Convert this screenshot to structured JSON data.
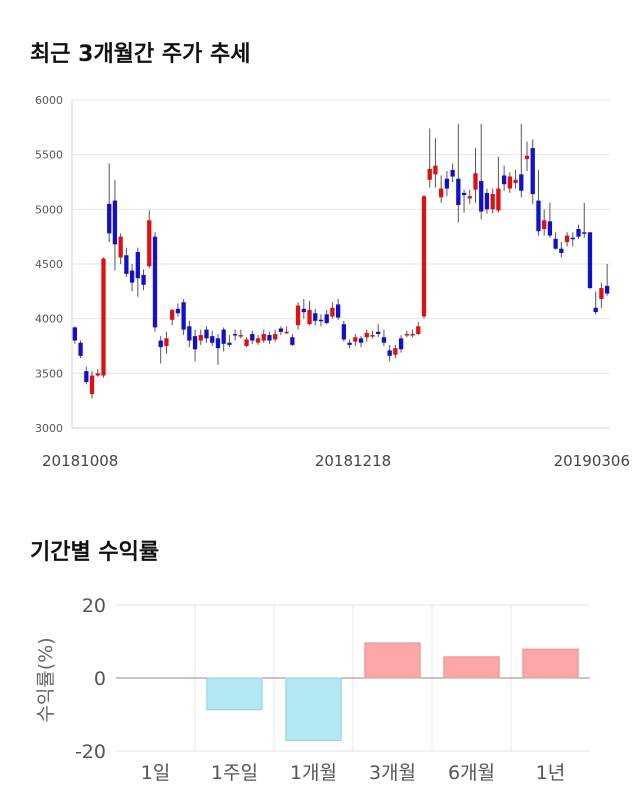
{
  "chart_data": [
    {
      "type": "candlestick",
      "title": "최근 3개월간 주가 추세",
      "ylim": [
        3000,
        6000
      ],
      "y_ticks": [
        "3000",
        "3500",
        "4000",
        "4500",
        "5000",
        "5500",
        "6000"
      ],
      "x_labels": [
        "20181008",
        "20181218",
        "20190306"
      ],
      "colors": {
        "up": "#dd1111",
        "down": "#1111cc",
        "wick": "#555555"
      },
      "candles": [
        [
          3920,
          3800,
          3930,
          3770
        ],
        [
          3780,
          3660,
          3800,
          3640
        ],
        [
          3520,
          3420,
          3560,
          3400
        ],
        [
          3310,
          3480,
          3520,
          3270
        ],
        [
          3480,
          3500,
          3540,
          3470
        ],
        [
          3480,
          4550,
          4560,
          3460
        ],
        [
          5050,
          4780,
          5420,
          4700
        ],
        [
          5080,
          4680,
          5270,
          4440
        ],
        [
          4560,
          4750,
          4780,
          4500
        ],
        [
          4580,
          4410,
          4650,
          4380
        ],
        [
          4440,
          4330,
          4500,
          4250
        ],
        [
          4610,
          4370,
          4650,
          4200
        ],
        [
          4400,
          4310,
          4450,
          4260
        ],
        [
          4480,
          4900,
          4990,
          4460
        ],
        [
          4750,
          3920,
          4790,
          3880
        ],
        [
          3800,
          3740,
          3840,
          3590
        ],
        [
          3750,
          3820,
          3880,
          3680
        ],
        [
          3990,
          4080,
          4090,
          3940
        ],
        [
          4090,
          4050,
          4140,
          4020
        ],
        [
          4150,
          3900,
          4180,
          3850
        ],
        [
          3930,
          3800,
          3980,
          3740
        ],
        [
          3840,
          3720,
          3900,
          3610
        ],
        [
          3800,
          3850,
          3900,
          3760
        ],
        [
          3900,
          3820,
          3930,
          3780
        ],
        [
          3840,
          3780,
          3890,
          3750
        ],
        [
          3820,
          3730,
          3860,
          3580
        ],
        [
          3900,
          3770,
          3920,
          3700
        ],
        [
          3780,
          3760,
          3850,
          3740
        ],
        [
          3860,
          3850,
          3900,
          3800
        ],
        [
          3850,
          3850,
          3900,
          3820
        ],
        [
          3750,
          3810,
          3830,
          3740
        ],
        [
          3860,
          3800,
          3890,
          3770
        ],
        [
          3780,
          3820,
          3850,
          3760
        ],
        [
          3800,
          3860,
          3900,
          3780
        ],
        [
          3850,
          3800,
          3880,
          3770
        ],
        [
          3810,
          3860,
          3900,
          3790
        ],
        [
          3910,
          3880,
          3930,
          3850
        ],
        [
          3880,
          3880,
          3930,
          3860
        ],
        [
          3830,
          3760,
          3860,
          3750
        ],
        [
          3940,
          4120,
          4150,
          3900
        ],
        [
          4090,
          4060,
          4180,
          4000
        ],
        [
          3950,
          4080,
          4160,
          3940
        ],
        [
          4050,
          3980,
          4090,
          3940
        ],
        [
          3990,
          3980,
          4040,
          3930
        ],
        [
          4040,
          3960,
          4080,
          3950
        ],
        [
          4020,
          4100,
          4150,
          4000
        ],
        [
          4130,
          4010,
          4180,
          3990
        ],
        [
          3950,
          3810,
          3980,
          3790
        ],
        [
          3780,
          3760,
          3810,
          3730
        ],
        [
          3790,
          3830,
          3860,
          3750
        ],
        [
          3820,
          3780,
          3840,
          3740
        ],
        [
          3830,
          3870,
          3900,
          3790
        ],
        [
          3850,
          3850,
          3890,
          3820
        ],
        [
          3880,
          3860,
          3950,
          3830
        ],
        [
          3830,
          3780,
          3900,
          3750
        ],
        [
          3710,
          3660,
          3760,
          3610
        ],
        [
          3670,
          3730,
          3760,
          3640
        ],
        [
          3820,
          3720,
          3850,
          3690
        ],
        [
          3860,
          3860,
          3890,
          3830
        ],
        [
          3850,
          3860,
          3900,
          3830
        ],
        [
          3860,
          3930,
          3970,
          3850
        ],
        [
          4020,
          5120,
          5130,
          4000
        ],
        [
          5270,
          5370,
          5740,
          5200
        ],
        [
          5320,
          5400,
          5650,
          5200
        ],
        [
          5110,
          5190,
          5310,
          5060
        ],
        [
          5280,
          5190,
          5350,
          5120
        ],
        [
          5360,
          5300,
          5420,
          5250
        ],
        [
          5280,
          5040,
          5780,
          4880
        ],
        [
          5150,
          5130,
          5180,
          4970
        ],
        [
          5100,
          5120,
          5180,
          5050
        ],
        [
          5180,
          5330,
          5560,
          5060
        ],
        [
          5260,
          4980,
          5780,
          4910
        ],
        [
          5150,
          5000,
          5190,
          4960
        ],
        [
          5000,
          5140,
          5190,
          4960
        ],
        [
          4990,
          5190,
          5480,
          4970
        ],
        [
          5310,
          5230,
          5400,
          5170
        ],
        [
          5190,
          5300,
          5340,
          5150
        ],
        [
          5240,
          5270,
          5360,
          5190
        ],
        [
          5320,
          5170,
          5780,
          5110
        ],
        [
          5460,
          5490,
          5620,
          5350
        ],
        [
          5560,
          5140,
          5640,
          5050
        ],
        [
          5080,
          4800,
          5360,
          4760
        ],
        [
          4820,
          4900,
          5000,
          4760
        ],
        [
          4890,
          4760,
          5060,
          4740
        ],
        [
          4730,
          4640,
          4790,
          4630
        ],
        [
          4640,
          4600,
          4700,
          4560
        ],
        [
          4700,
          4760,
          4790,
          4660
        ],
        [
          4740,
          4730,
          4790,
          4660
        ],
        [
          4820,
          4750,
          4860,
          4730
        ],
        [
          4790,
          4780,
          5060,
          4740
        ],
        [
          4790,
          4280,
          4790,
          4270
        ],
        [
          4100,
          4060,
          4250,
          4040
        ],
        [
          4180,
          4280,
          4330,
          4100
        ],
        [
          4300,
          4230,
          4500,
          4210
        ]
      ]
    },
    {
      "type": "bar",
      "title": "기간별 수익률",
      "ylabel": "수익률(%)",
      "ylim": [
        -20,
        20
      ],
      "y_ticks": [
        "20",
        "0",
        "-20"
      ],
      "categories": [
        "1일",
        "1주일",
        "1개월",
        "3개월",
        "6개월",
        "1년"
      ],
      "values": [
        0,
        -8.7,
        -17.1,
        9.6,
        5.8,
        7.9
      ],
      "colors": {
        "positive": "#fba7a9",
        "negative": "#b3e8f2"
      }
    }
  ]
}
